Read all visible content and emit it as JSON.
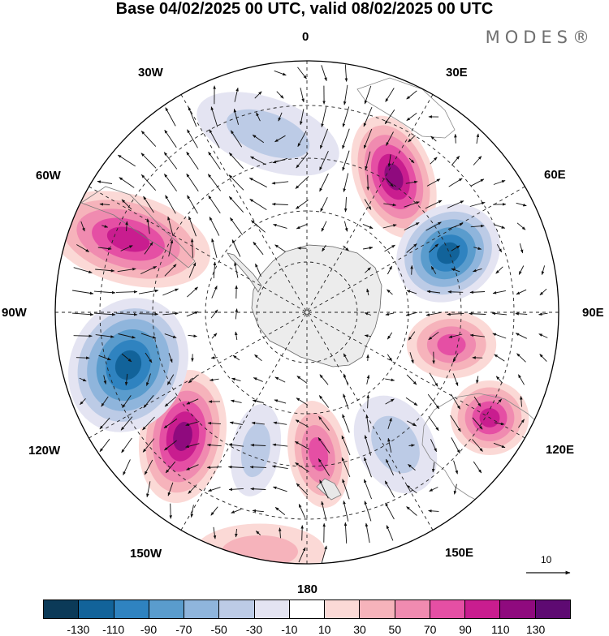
{
  "title": "Base 04/02/2025 00 UTC, valid 08/02/2025 00 UTC",
  "brand": "MODES®",
  "map": {
    "projection": "south-polar-stereographic",
    "longitude_labels": {
      "lon_0": "0",
      "lon_30e": "30E",
      "lon_60e": "60E",
      "lon_90e": "90E",
      "lon_120e": "120E",
      "lon_150e": "150E",
      "lon_180": "180",
      "lon_150w": "150W",
      "lon_120w": "120W",
      "lon_90w": "90W",
      "lon_60w": "60W",
      "lon_30w": "30W"
    },
    "reference_vector_label": "10",
    "anomaly_centers": [
      {
        "name": "positive-anomaly-30e",
        "sign": "positive",
        "max_level": 110
      },
      {
        "name": "negative-anomaly-60e",
        "sign": "negative",
        "max_level": -130
      },
      {
        "name": "positive-anomaly-100e",
        "sign": "positive",
        "max_level": 70
      },
      {
        "name": "positive-anomaly-120e",
        "sign": "positive",
        "max_level": 90
      },
      {
        "name": "negative-anomaly-150e",
        "sign": "negative",
        "max_level": -50
      },
      {
        "name": "positive-anomaly-170e",
        "sign": "positive",
        "max_level": 70
      },
      {
        "name": "negative-anomaly-170w",
        "sign": "negative",
        "max_level": -50
      },
      {
        "name": "positive-anomaly-140w",
        "sign": "positive",
        "max_level": 110
      },
      {
        "name": "negative-anomaly-110w",
        "sign": "negative",
        "max_level": -130
      },
      {
        "name": "positive-anomaly-60w",
        "sign": "positive",
        "max_level": 90
      },
      {
        "name": "negative-anomaly-20w",
        "sign": "negative",
        "max_level": -50
      },
      {
        "name": "positive-anomaly-150w-coast",
        "sign": "positive",
        "max_level": 30
      }
    ]
  },
  "colorbar": {
    "colors": [
      "#0b3a58",
      "#12639a",
      "#2f83c0",
      "#5a9ccd",
      "#8fb5dc",
      "#bccbe6",
      "#e4e4f2",
      "#ffffff",
      "#fbd9d6",
      "#f6b3bb",
      "#f08bb0",
      "#e54fa4",
      "#c91d8f",
      "#8f0a7e",
      "#5e0a72"
    ],
    "tick_labels": [
      "-130",
      "-110",
      "-90",
      "-70",
      "-50",
      "-30",
      "-10",
      "10",
      "30",
      "50",
      "70",
      "90",
      "110",
      "130"
    ]
  }
}
